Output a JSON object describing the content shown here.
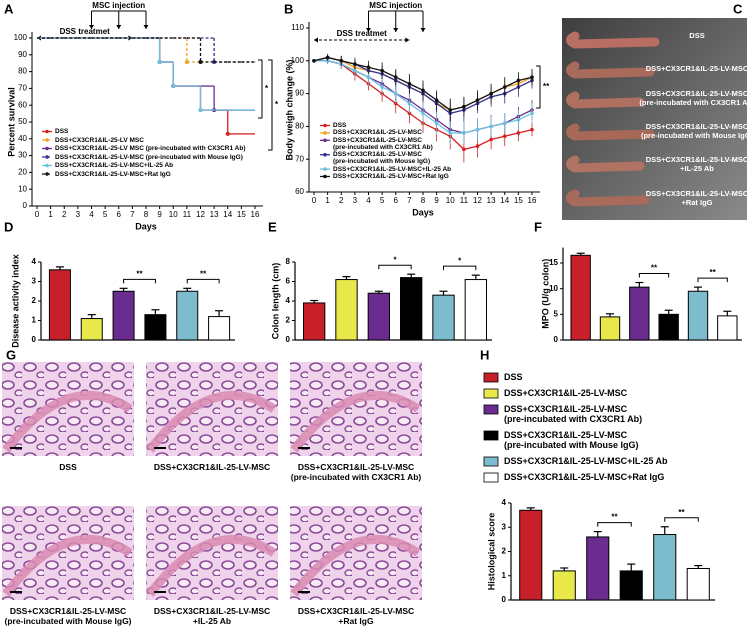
{
  "chart_data": [
    {
      "type": "line",
      "step": true,
      "panel": "A",
      "ylabel": "Percent survival",
      "xlabel": "Days",
      "x": [
        0,
        1,
        2,
        3,
        4,
        5,
        6,
        7,
        8,
        9,
        10,
        11,
        12,
        13,
        14,
        15,
        16
      ],
      "xlim": [
        0,
        16
      ],
      "xticks": [
        0,
        1,
        2,
        3,
        4,
        5,
        6,
        7,
        8,
        9,
        10,
        11,
        12,
        13,
        14,
        15,
        16
      ],
      "ylim": [
        0,
        100
      ],
      "yticks": [
        0,
        10,
        20,
        30,
        40,
        50,
        60,
        70,
        80,
        90,
        100
      ],
      "injection_label": "MSC injection",
      "injection_days": [
        4,
        6,
        8
      ],
      "dss_label": "DSS treatmet",
      "dss_days": [
        0,
        7
      ],
      "annotations": [
        {
          "text": "*"
        },
        {
          "text": "*"
        }
      ],
      "series": [
        {
          "name": "DSS",
          "color": "#d62020",
          "values": [
            100,
            100,
            100,
            100,
            100,
            100,
            100,
            100,
            100,
            85.7,
            71.4,
            71.4,
            57.1,
            57.1,
            42.9,
            42.9,
            42.9
          ]
        },
        {
          "name": "DSS+CX3CR1&IL-25-LV MSC",
          "color": "#f0a020",
          "dashed": true,
          "values": [
            100,
            100,
            100,
            100,
            100,
            100,
            100,
            100,
            100,
            100,
            100,
            85.7,
            85.7,
            85.7,
            85.7,
            85.7,
            85.7
          ]
        },
        {
          "name": "DSS+CX3CR1&IL-25-LV MSC (pre-incubated with CX3CR1 Ab)",
          "color": "#6a2d8f",
          "values": [
            100,
            100,
            100,
            100,
            100,
            100,
            100,
            100,
            100,
            85.7,
            71.4,
            71.4,
            71.4,
            57.1,
            57.1,
            57.1,
            57.1
          ]
        },
        {
          "name": "DSS+CX3CR1&IL-25-LV-MSC (pre-incubated with Mouse IgG)",
          "color": "#303090",
          "dashed": true,
          "values": [
            100,
            100,
            100,
            100,
            100,
            100,
            100,
            100,
            100,
            100,
            100,
            100,
            100,
            85.7,
            85.7,
            85.7,
            85.7
          ]
        },
        {
          "name": "DSS+CX3CR1&IL-25-LV-MSC+IL-25 Ab",
          "color": "#6cc0e0",
          "values": [
            100,
            100,
            100,
            100,
            100,
            100,
            100,
            100,
            100,
            85.7,
            71.4,
            71.4,
            57.1,
            57.1,
            57.1,
            57.1,
            57.1
          ]
        },
        {
          "name": "DSS+CX3CR1&IL-25-LV-MSC+Rat IgG",
          "color": "#111111",
          "dashed": true,
          "values": [
            100,
            100,
            100,
            100,
            100,
            100,
            100,
            100,
            100,
            100,
            100,
            100,
            85.7,
            85.7,
            85.7,
            85.7,
            85.7
          ]
        }
      ]
    },
    {
      "type": "line",
      "panel": "B",
      "ylabel": "Body weigh change (%)",
      "xlabel": "Days",
      "x": [
        0,
        1,
        2,
        3,
        4,
        5,
        6,
        7,
        8,
        9,
        10,
        11,
        12,
        13,
        14,
        15,
        16
      ],
      "xlim": [
        0,
        16
      ],
      "xticks": [
        0,
        1,
        2,
        3,
        4,
        5,
        6,
        7,
        8,
        9,
        10,
        11,
        12,
        13,
        14,
        15,
        16
      ],
      "ylim": [
        60,
        110
      ],
      "yticks": [
        60,
        70,
        80,
        90,
        100,
        110
      ],
      "injection_label": "MSC injection",
      "injection_days": [
        4,
        6,
        8
      ],
      "dss_label": "DSS treatmet",
      "dss_days": [
        0,
        7
      ],
      "annotations": [
        {
          "text": "**"
        }
      ],
      "series": [
        {
          "name": "DSS",
          "color": "#d62020",
          "values": [
            100,
            100,
            99,
            96,
            93,
            90,
            87,
            84,
            81,
            79,
            77,
            73,
            74,
            76,
            77,
            78,
            79
          ],
          "errors": [
            0,
            1,
            1.5,
            2,
            2,
            2.5,
            3,
            3,
            3,
            3.5,
            4,
            4,
            3.5,
            3,
            3,
            2.5,
            2
          ]
        },
        {
          "name": "DSS+CX3CR1&IL-25-LV-MSC",
          "color": "#f0a020",
          "values": [
            100,
            101,
            100,
            98,
            97,
            96,
            94,
            92,
            90,
            87,
            85,
            86,
            88,
            90,
            92,
            93,
            95
          ],
          "errors": [
            0,
            1,
            1.5,
            2,
            2,
            2.5,
            2.5,
            3,
            3,
            3.5,
            3.5,
            3,
            3,
            3,
            3,
            2.5,
            2.5
          ]
        },
        {
          "name": "DSS+CX3CR1&IL-25-LV-MSC\n(pre-incubated with CX3CR1 Ab)",
          "color": "#6a2d8f",
          "values": [
            100,
            100,
            99,
            97,
            95,
            93,
            90,
            88,
            85,
            82,
            79,
            78,
            79,
            80,
            81,
            83,
            85
          ],
          "errors": [
            0,
            1,
            1.5,
            2,
            2.5,
            2.5,
            3,
            3,
            3.5,
            3.5,
            4,
            3.5,
            3.5,
            3.5,
            3,
            3,
            3
          ]
        },
        {
          "name": "DSS+CX3CR1&IL-25-LV-MSC\n(pre-incubated with Mouse IgG)",
          "color": "#303090",
          "values": [
            100,
            101,
            100,
            99,
            97,
            96,
            94,
            92,
            90,
            87,
            84,
            85,
            87,
            89,
            90,
            92,
            94
          ],
          "errors": [
            0,
            1,
            1.5,
            2,
            2,
            2.5,
            3,
            3,
            3,
            3.5,
            3.5,
            3.5,
            3,
            3,
            3,
            3,
            2.5
          ]
        },
        {
          "name": "DSS+CX3CR1&IL-25-LV-MSC+IL-25 Ab",
          "color": "#6cc0e0",
          "values": [
            100,
            100,
            99,
            97,
            95,
            92,
            90,
            87,
            84,
            81,
            78,
            78,
            79,
            80,
            81,
            82,
            84
          ],
          "errors": [
            0,
            1,
            1.5,
            2,
            2.5,
            2.5,
            3,
            3,
            3.5,
            3.5,
            3.5,
            3.5,
            3.5,
            3,
            3,
            3,
            3
          ]
        },
        {
          "name": "DSS+CX3CR1&IL-25-LV-MSC+Rat IgG",
          "color": "#111111",
          "values": [
            100,
            101,
            100,
            99,
            98,
            97,
            95,
            93,
            91,
            88,
            85,
            86,
            88,
            90,
            92,
            94,
            95
          ],
          "errors": [
            0,
            1,
            1.5,
            1.5,
            2,
            2.5,
            2.5,
            3,
            3,
            3,
            3.5,
            3,
            3,
            3,
            3,
            2.5,
            2.5
          ]
        }
      ]
    },
    {
      "type": "bar",
      "panel": "D",
      "ylabel": "Disease activity index",
      "ylim": [
        0,
        4
      ],
      "yticks": [
        0,
        1,
        2,
        3,
        4
      ],
      "values": [
        3.6,
        1.1,
        2.5,
        1.3,
        2.5,
        1.2
      ],
      "errors": [
        0.15,
        0.2,
        0.15,
        0.25,
        0.15,
        0.3
      ],
      "colors": [
        "#c8202a",
        "#e8e84a",
        "#6a2d8f",
        "#000000",
        "#7cbccc",
        "#ffffff"
      ],
      "annotations": [
        {
          "text": "**"
        },
        {
          "text": "**"
        }
      ]
    },
    {
      "type": "bar",
      "panel": "E",
      "ylabel": "Colon length (cm)",
      "ylim": [
        0,
        8
      ],
      "yticks": [
        0,
        2,
        4,
        6,
        8
      ],
      "values": [
        3.8,
        6.2,
        4.8,
        6.4,
        4.6,
        6.2
      ],
      "errors": [
        0.25,
        0.3,
        0.2,
        0.35,
        0.4,
        0.45
      ],
      "colors": [
        "#c8202a",
        "#e8e84a",
        "#6a2d8f",
        "#000000",
        "#7cbccc",
        "#ffffff"
      ],
      "annotations": [
        {
          "text": "*"
        },
        {
          "text": "*"
        }
      ]
    },
    {
      "type": "bar",
      "panel": "F",
      "ylabel": "MPO (U/g colon)",
      "ylim": [
        0,
        18
      ],
      "yticks": [
        0,
        5,
        10,
        15
      ],
      "values": [
        16.5,
        4.5,
        10.3,
        5.0,
        9.5,
        4.7
      ],
      "errors": [
        0.4,
        0.6,
        0.9,
        0.8,
        0.8,
        0.9
      ],
      "colors": [
        "#c8202a",
        "#e8e84a",
        "#6a2d8f",
        "#000000",
        "#7cbccc",
        "#ffffff"
      ],
      "annotations": [
        {
          "text": "**"
        },
        {
          "text": "**"
        }
      ]
    },
    {
      "type": "bar",
      "panel": "H",
      "ylabel": "Histological score",
      "ylim": [
        0,
        4
      ],
      "yticks": [
        0,
        1,
        2,
        3,
        4
      ],
      "categories": [
        "DSS",
        "DSS+CX3CR1&IL-25-LV-MSC",
        "DSS+CX3CR1&IL-25-LV-MSC\n(pre-incubated with CX3CR1 Ab)",
        "DSS+CX3CR1&IL-25-LV-MSC\n(pre-incubated with Mouse IgG)",
        "DSS+CX3CR1&IL-25-LV-MSC+IL-25 Ab",
        "DSS+CX3CR1&IL-25-LV-MSC+Rat IgG"
      ],
      "values": [
        3.7,
        1.2,
        2.6,
        1.2,
        2.7,
        1.3
      ],
      "errors": [
        0.1,
        0.12,
        0.22,
        0.28,
        0.32,
        0.12
      ],
      "colors": [
        "#c8202a",
        "#e8e84a",
        "#6a2d8f",
        "#000000",
        "#7cbccc",
        "#ffffff"
      ],
      "annotations": [
        {
          "text": "**"
        },
        {
          "text": "**"
        }
      ]
    }
  ],
  "panel_c": {
    "panel": "C",
    "labels": [
      "DSS",
      "DSS+CX3CR1&IL-25-LV-MSC",
      "DSS+CX3CR1&IL-25-LV-MSC\n(pre-incubated with CX3CR1 Ab)",
      "DSS+CX3CR1&IL-25-LV-MSC\n(pre-incubated with Mouse IgG)",
      "DSS+CX3CR1&IL-25-LV-MSC\n+IL-25 Ab",
      "DSS+CX3CR1&IL-25-LV-MSC\n+Rat IgG"
    ]
  },
  "panel_g": {
    "panel": "G",
    "captions": [
      "DSS",
      "DSS+CX3CR1&IL-25-LV-MSC",
      "DSS+CX3CR1&IL-25-LV-MSC\n(pre-incubated with CX3CR1 Ab)",
      "DSS+CX3CR1&IL-25-LV-MSC\n(pre-incubated with Mouse IgG)",
      "DSS+CX3CR1&IL-25-LV-MSC\n+IL-25 Ab",
      "DSS+CX3CR1&IL-25-LV-MSC\n+Rat IgG"
    ]
  }
}
